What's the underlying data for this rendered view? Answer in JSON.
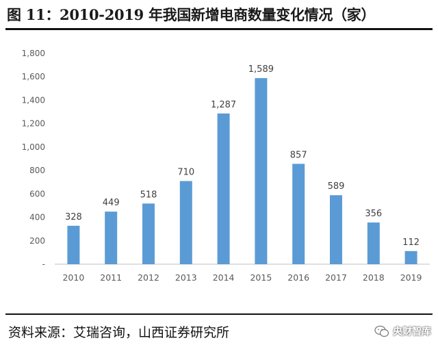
{
  "title": "图 11：2010-2019 年我国新增电商数量变化情况（家）",
  "source": "资料来源：艾瑞咨询，山西证券研究所",
  "watermark": {
    "text": "央财智库",
    "icon": "wechat-icon"
  },
  "colors": {
    "bar": "#5B9BD5",
    "axis": "#BFBFBF",
    "text": "#595959"
  },
  "chart_data": {
    "type": "bar",
    "categories": [
      "2010",
      "2011",
      "2012",
      "2013",
      "2014",
      "2015",
      "2016",
      "2017",
      "2018",
      "2019"
    ],
    "values": [
      328,
      449,
      518,
      710,
      1287,
      1589,
      857,
      589,
      356,
      112
    ],
    "data_labels": [
      "328",
      "449",
      "518",
      "710",
      "1,287",
      "1,589",
      "857",
      "589",
      "356",
      "112"
    ],
    "ylim": [
      0,
      1800
    ],
    "yticks": [
      0,
      200,
      400,
      600,
      800,
      1000,
      1200,
      1400,
      1600,
      1800
    ],
    "ytick_labels": [
      "-",
      "200",
      "400",
      "600",
      "800",
      "1,000",
      "1,200",
      "1,400",
      "1,600",
      "1,800"
    ],
    "grid": false,
    "legend": "none",
    "xlabel": "",
    "ylabel": ""
  }
}
